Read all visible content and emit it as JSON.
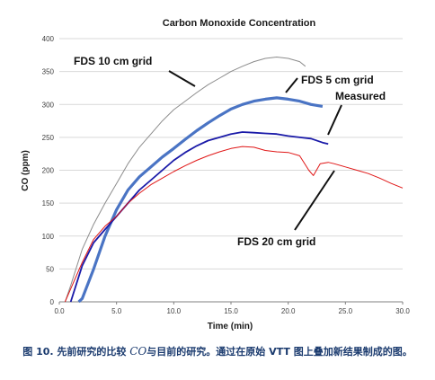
{
  "chart_data": {
    "type": "line",
    "title": "Carbon Monoxide Concentration",
    "xlabel": "Time (min)",
    "ylabel": "CO (ppm)",
    "xlim": [
      0,
      30
    ],
    "ylim": [
      0,
      400
    ],
    "x_ticks": [
      "0.0",
      "5.0",
      "10.0",
      "15.0",
      "20.0",
      "25.0",
      "30.0"
    ],
    "y_ticks": [
      "0",
      "50",
      "100",
      "150",
      "200",
      "250",
      "300",
      "350",
      "400"
    ],
    "grid": "horizontal",
    "series": [
      {
        "name": "FDS 10 cm grid",
        "color": "#8c8c8c",
        "x": [
          0.5,
          1,
          2,
          3,
          4,
          5,
          6,
          7,
          8,
          9,
          10,
          11,
          12,
          13,
          14,
          15,
          16,
          17,
          18,
          19,
          20,
          21,
          21.5
        ],
        "y": [
          0,
          25,
          80,
          118,
          150,
          180,
          210,
          235,
          255,
          275,
          292,
          305,
          318,
          330,
          340,
          350,
          358,
          365,
          370,
          372,
          370,
          365,
          358
        ]
      },
      {
        "name": "FDS 5 cm grid",
        "color": "#4a74c4",
        "x": [
          1.7,
          2,
          3,
          4,
          5,
          6,
          7,
          8,
          9,
          10,
          11,
          12,
          13,
          14,
          15,
          16,
          17,
          18,
          19,
          20,
          21,
          22,
          23
        ],
        "y": [
          0,
          5,
          50,
          100,
          140,
          170,
          190,
          205,
          220,
          233,
          247,
          260,
          272,
          283,
          293,
          300,
          305,
          308,
          310,
          308,
          305,
          300,
          297
        ]
      },
      {
        "name": "Measured",
        "color": "#1a1aa8",
        "x": [
          1,
          2,
          3,
          4,
          5,
          6,
          7,
          8,
          9,
          10,
          11,
          12,
          13,
          14,
          15,
          16,
          17,
          18,
          19,
          20,
          21,
          22,
          23,
          23.5
        ],
        "y": [
          0,
          55,
          90,
          110,
          130,
          150,
          170,
          185,
          200,
          215,
          227,
          237,
          245,
          250,
          255,
          258,
          257,
          256,
          255,
          252,
          250,
          248,
          242,
          240
        ]
      },
      {
        "name": "FDS 20 cm grid",
        "color": "#e01616",
        "x": [
          0.5,
          1,
          2,
          3,
          4,
          5,
          6,
          7,
          8,
          9,
          10,
          11,
          12,
          13,
          14,
          15,
          16,
          17,
          18,
          19,
          20,
          21,
          21.8,
          22.2,
          22.8,
          23.5,
          24,
          25,
          26,
          27,
          28,
          29,
          30
        ],
        "y": [
          0,
          20,
          60,
          95,
          115,
          130,
          150,
          165,
          178,
          188,
          198,
          207,
          215,
          222,
          228,
          233,
          236,
          235,
          230,
          228,
          227,
          222,
          200,
          192,
          210,
          212,
          210,
          205,
          200,
          195,
          188,
          180,
          173
        ]
      }
    ],
    "annotations": [
      {
        "text": "FDS 10 cm grid",
        "series": 0
      },
      {
        "text": "FDS 5 cm grid",
        "series": 1
      },
      {
        "text": "Measured",
        "series": 2
      },
      {
        "text": "FDS 20 cm grid",
        "series": 3
      }
    ]
  },
  "caption": {
    "prefix": "图 10. 先前研究的比较 ",
    "co": "CO",
    "suffix": "与目前的研究。通过在原始 VTT 图上叠加新结果制成的图。"
  }
}
